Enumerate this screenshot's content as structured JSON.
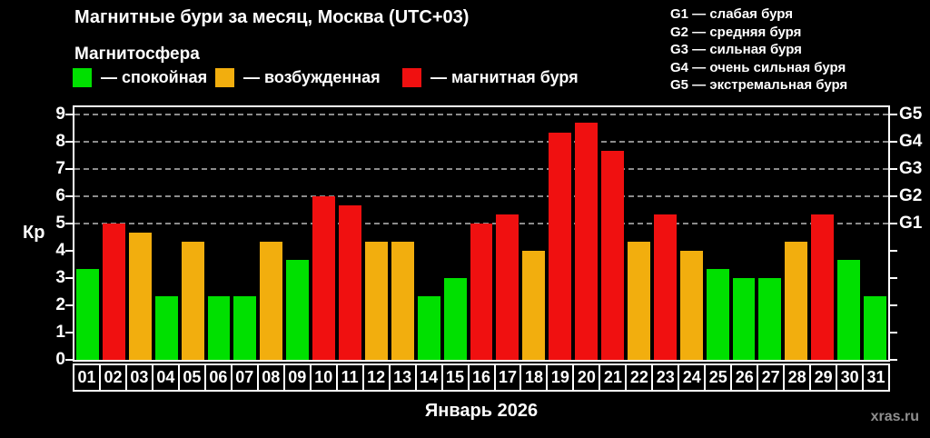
{
  "title": "Магнитные бури за месяц, Москва (UTC+03)",
  "subtitle": "Магнитосфера",
  "legend": {
    "items": [
      {
        "status": "quiet",
        "label": "— спокойная",
        "color": "#00E000"
      },
      {
        "status": "excited",
        "label": "— возбужденная",
        "color": "#F2AE0E"
      },
      {
        "status": "storm",
        "label": "— магнитная буря",
        "color": "#F01010"
      }
    ]
  },
  "storm_scale_legend": [
    "G1 — слабая буря",
    "G2 — средняя буря",
    "G3 — сильная буря",
    "G4 — очень сильная буря",
    "G5 — экстремальная буря"
  ],
  "axis": {
    "y_label": "Кр",
    "kp_ticks": [
      0,
      1,
      2,
      3,
      4,
      5,
      6,
      7,
      8,
      9
    ],
    "kp_max_visual": 9.25,
    "grid_levels": [
      5,
      6,
      7,
      8,
      9
    ],
    "g_labels": [
      {
        "kp": 5,
        "label": "G1"
      },
      {
        "kp": 6,
        "label": "G2"
      },
      {
        "kp": 7,
        "label": "G3"
      },
      {
        "kp": 8,
        "label": "G4"
      },
      {
        "kp": 9,
        "label": "G5"
      }
    ]
  },
  "footer": {
    "month_label": "Январь 2026",
    "watermark": "xras.ru"
  },
  "chart_data": {
    "type": "bar",
    "title": "Магнитные бури за месяц, Москва (UTC+03)",
    "xlabel": "Январь 2026",
    "ylabel": "Кр",
    "ylim": [
      0,
      9
    ],
    "grid": "horizontal dashed lines at Kp 5,6,7,8,9 (G1–G5)",
    "legend_position": "top",
    "days": [
      {
        "day": "01",
        "kp": 3.33,
        "status": "quiet"
      },
      {
        "day": "02",
        "kp": 5.0,
        "status": "storm"
      },
      {
        "day": "03",
        "kp": 4.67,
        "status": "excited"
      },
      {
        "day": "04",
        "kp": 2.33,
        "status": "quiet"
      },
      {
        "day": "05",
        "kp": 4.33,
        "status": "excited"
      },
      {
        "day": "06",
        "kp": 2.33,
        "status": "quiet"
      },
      {
        "day": "07",
        "kp": 2.33,
        "status": "quiet"
      },
      {
        "day": "08",
        "kp": 4.33,
        "status": "excited"
      },
      {
        "day": "09",
        "kp": 3.67,
        "status": "quiet"
      },
      {
        "day": "10",
        "kp": 6.0,
        "status": "storm"
      },
      {
        "day": "11",
        "kp": 5.67,
        "status": "storm"
      },
      {
        "day": "12",
        "kp": 4.33,
        "status": "excited"
      },
      {
        "day": "13",
        "kp": 4.33,
        "status": "excited"
      },
      {
        "day": "14",
        "kp": 2.33,
        "status": "quiet"
      },
      {
        "day": "15",
        "kp": 3.0,
        "status": "quiet"
      },
      {
        "day": "16",
        "kp": 5.0,
        "status": "storm"
      },
      {
        "day": "17",
        "kp": 5.33,
        "status": "storm"
      },
      {
        "day": "18",
        "kp": 4.0,
        "status": "excited"
      },
      {
        "day": "19",
        "kp": 8.33,
        "status": "storm"
      },
      {
        "day": "20",
        "kp": 8.67,
        "status": "storm"
      },
      {
        "day": "21",
        "kp": 7.67,
        "status": "storm"
      },
      {
        "day": "22",
        "kp": 4.33,
        "status": "excited"
      },
      {
        "day": "23",
        "kp": 5.33,
        "status": "storm"
      },
      {
        "day": "24",
        "kp": 4.0,
        "status": "excited"
      },
      {
        "day": "25",
        "kp": 3.33,
        "status": "quiet"
      },
      {
        "day": "26",
        "kp": 3.0,
        "status": "quiet"
      },
      {
        "day": "27",
        "kp": 3.0,
        "status": "quiet"
      },
      {
        "day": "28",
        "kp": 4.33,
        "status": "excited"
      },
      {
        "day": "29",
        "kp": 5.33,
        "status": "storm"
      },
      {
        "day": "30",
        "kp": 3.67,
        "status": "quiet"
      },
      {
        "day": "31",
        "kp": 2.33,
        "status": "quiet"
      }
    ]
  }
}
